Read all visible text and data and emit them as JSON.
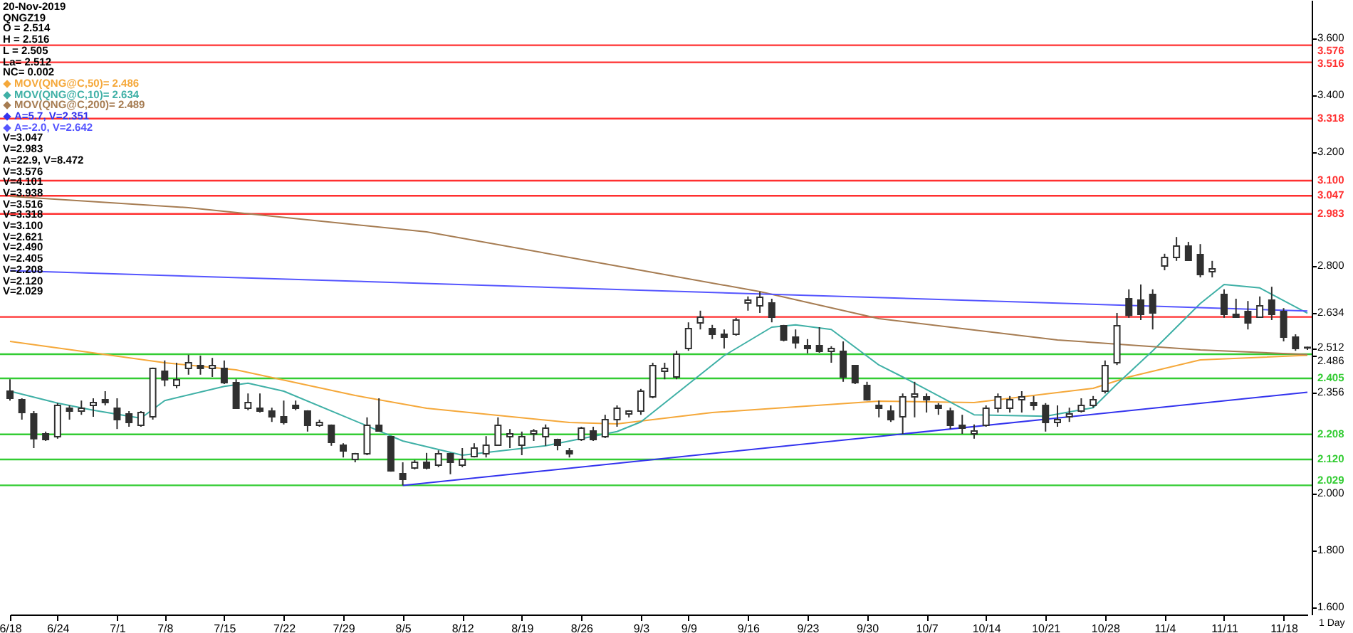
{
  "chart_data": {
    "type": "candlestick",
    "title": "20-Nov-2019",
    "subtitle": "QNGZ19",
    "xlabel": "1 Day",
    "annotations": [
      "O = 2.514",
      "H = 2.516",
      "L = 2.505",
      "La= 2.512",
      "NC= 0.002",
      "V=3.047",
      "V=2.983",
      "A=22.9, V=8.472",
      "V=3.576",
      "V=4.101",
      "V=3.938",
      "V=3.516",
      "V=3.318",
      "V=3.100",
      "V=2.621",
      "V=2.490",
      "V=2.405",
      "V=2.208",
      "V=2.120",
      "V=2.029"
    ],
    "categories": [
      "6/18",
      null,
      null,
      null,
      "6/24",
      null,
      null,
      null,
      null,
      "7/1",
      null,
      null,
      null,
      "7/8",
      null,
      null,
      null,
      null,
      "7/15",
      null,
      null,
      null,
      null,
      "7/22",
      null,
      null,
      null,
      null,
      "7/29",
      null,
      null,
      null,
      null,
      "8/5",
      null,
      null,
      null,
      null,
      "8/12",
      null,
      null,
      null,
      null,
      "8/19",
      null,
      null,
      null,
      null,
      "8/26",
      null,
      null,
      null,
      null,
      "9/3",
      null,
      null,
      null,
      "9/9",
      null,
      null,
      null,
      null,
      "9/16",
      null,
      null,
      null,
      null,
      "9/23",
      null,
      null,
      null,
      null,
      "9/30",
      null,
      null,
      null,
      null,
      "10/7",
      null,
      null,
      null,
      null,
      "10/14",
      null,
      null,
      null,
      null,
      "10/21",
      null,
      null,
      null,
      null,
      "10/28",
      null,
      null,
      null,
      null,
      "11/4",
      null,
      null,
      null,
      null,
      "11/11",
      null,
      null,
      null,
      null,
      "11/18",
      null,
      null
    ],
    "color": "#303030",
    "ohlc": [
      [
        2.36,
        2.402,
        2.327,
        2.335
      ],
      [
        2.33,
        2.335,
        2.26,
        2.285
      ],
      [
        2.28,
        2.29,
        2.16,
        2.193
      ],
      [
        2.21,
        2.218,
        2.185,
        2.19
      ],
      [
        2.2,
        2.318,
        2.193,
        2.31
      ],
      [
        2.3,
        2.31,
        2.26,
        2.29
      ],
      [
        2.29,
        2.327,
        2.277,
        2.3
      ],
      [
        2.31,
        2.335,
        2.27,
        2.32
      ],
      [
        2.33,
        2.36,
        2.31,
        2.32
      ],
      [
        2.3,
        2.335,
        2.227,
        2.26
      ],
      [
        2.28,
        2.29,
        2.235,
        2.25
      ],
      [
        2.24,
        2.29,
        2.235,
        2.285
      ],
      [
        2.27,
        2.443,
        2.26,
        2.44
      ],
      [
        2.43,
        2.468,
        2.377,
        2.4
      ],
      [
        2.38,
        2.46,
        2.37,
        2.4
      ],
      [
        2.44,
        2.488,
        2.418,
        2.46
      ],
      [
        2.45,
        2.485,
        2.418,
        2.44
      ],
      [
        2.44,
        2.477,
        2.41,
        2.45
      ],
      [
        2.44,
        2.468,
        2.385,
        2.39
      ],
      [
        2.39,
        2.402,
        2.298,
        2.3
      ],
      [
        2.3,
        2.352,
        2.293,
        2.32
      ],
      [
        2.3,
        2.352,
        2.285,
        2.29
      ],
      [
        2.29,
        2.302,
        2.252,
        2.27
      ],
      [
        2.27,
        2.327,
        2.243,
        2.25
      ],
      [
        2.31,
        2.327,
        2.293,
        2.3
      ],
      [
        2.29,
        2.293,
        2.218,
        2.24
      ],
      [
        2.24,
        2.26,
        2.235,
        2.25
      ],
      [
        2.24,
        2.243,
        2.168,
        2.18
      ],
      [
        2.17,
        2.177,
        2.127,
        2.15
      ],
      [
        2.12,
        2.143,
        2.11,
        2.14
      ],
      [
        2.14,
        2.268,
        2.135,
        2.24
      ],
      [
        2.24,
        2.335,
        2.218,
        2.22
      ],
      [
        2.2,
        2.202,
        2.077,
        2.08
      ],
      [
        2.07,
        2.11,
        2.029,
        2.05
      ],
      [
        2.09,
        2.118,
        2.085,
        2.11
      ],
      [
        2.11,
        2.143,
        2.085,
        2.09
      ],
      [
        2.1,
        2.152,
        2.093,
        2.14
      ],
      [
        2.14,
        2.143,
        2.068,
        2.11
      ],
      [
        2.1,
        2.16,
        2.093,
        2.12
      ],
      [
        2.13,
        2.177,
        2.127,
        2.16
      ],
      [
        2.14,
        2.202,
        2.127,
        2.17
      ],
      [
        2.17,
        2.268,
        2.168,
        2.24
      ],
      [
        2.2,
        2.227,
        2.16,
        2.21
      ],
      [
        2.17,
        2.218,
        2.135,
        2.2
      ],
      [
        2.21,
        2.227,
        2.185,
        2.22
      ],
      [
        2.2,
        2.243,
        2.168,
        2.23
      ],
      [
        2.19,
        2.193,
        2.152,
        2.17
      ],
      [
        2.15,
        2.16,
        2.127,
        2.14
      ],
      [
        2.19,
        2.235,
        2.185,
        2.23
      ],
      [
        2.22,
        2.235,
        2.185,
        2.19
      ],
      [
        2.2,
        2.277,
        2.195,
        2.26
      ],
      [
        2.26,
        2.31,
        2.235,
        2.3
      ],
      [
        2.28,
        2.293,
        2.268,
        2.29
      ],
      [
        2.29,
        2.368,
        2.277,
        2.36
      ],
      [
        2.34,
        2.46,
        2.335,
        2.45
      ],
      [
        2.43,
        2.46,
        2.402,
        2.44
      ],
      [
        2.41,
        2.502,
        2.402,
        2.49
      ],
      [
        2.51,
        2.602,
        2.502,
        2.58
      ],
      [
        2.6,
        2.643,
        2.577,
        2.62
      ],
      [
        2.58,
        2.593,
        2.543,
        2.56
      ],
      [
        2.56,
        2.577,
        2.51,
        2.55
      ],
      [
        2.56,
        2.618,
        2.555,
        2.61
      ],
      [
        2.67,
        2.693,
        2.643,
        2.68
      ],
      [
        2.66,
        2.71,
        2.635,
        2.69
      ],
      [
        2.67,
        2.685,
        2.602,
        2.62
      ],
      [
        2.59,
        2.593,
        2.535,
        2.54
      ],
      [
        2.55,
        2.577,
        2.51,
        2.53
      ],
      [
        2.52,
        2.543,
        2.493,
        2.51
      ],
      [
        2.52,
        2.585,
        2.495,
        2.5
      ],
      [
        2.5,
        2.518,
        2.46,
        2.51
      ],
      [
        2.5,
        2.535,
        2.393,
        2.41
      ],
      [
        2.45,
        2.452,
        2.385,
        2.39
      ],
      [
        2.38,
        2.393,
        2.327,
        2.33
      ],
      [
        2.31,
        2.327,
        2.268,
        2.3
      ],
      [
        2.29,
        2.31,
        2.252,
        2.26
      ],
      [
        2.27,
        2.352,
        2.21,
        2.34
      ],
      [
        2.34,
        2.393,
        2.268,
        2.35
      ],
      [
        2.34,
        2.352,
        2.285,
        2.33
      ],
      [
        2.31,
        2.318,
        2.277,
        2.3
      ],
      [
        2.29,
        2.302,
        2.227,
        2.24
      ],
      [
        2.24,
        2.277,
        2.21,
        2.23
      ],
      [
        2.21,
        2.243,
        2.193,
        2.22
      ],
      [
        2.24,
        2.31,
        2.235,
        2.3
      ],
      [
        2.3,
        2.352,
        2.285,
        2.34
      ],
      [
        2.3,
        2.343,
        2.285,
        2.33
      ],
      [
        2.33,
        2.36,
        2.285,
        2.34
      ],
      [
        2.32,
        2.343,
        2.293,
        2.31
      ],
      [
        2.31,
        2.318,
        2.218,
        2.25
      ],
      [
        2.25,
        2.31,
        2.235,
        2.26
      ],
      [
        2.27,
        2.302,
        2.252,
        2.28
      ],
      [
        2.29,
        2.335,
        2.285,
        2.31
      ],
      [
        2.31,
        2.343,
        2.302,
        2.33
      ],
      [
        2.36,
        2.468,
        2.352,
        2.45
      ],
      [
        2.46,
        2.635,
        2.452,
        2.59
      ],
      [
        2.685,
        2.718,
        2.618,
        2.627
      ],
      [
        2.68,
        2.735,
        2.61,
        2.63
      ],
      [
        2.7,
        2.718,
        2.577,
        2.635
      ],
      [
        2.8,
        2.843,
        2.785,
        2.83
      ],
      [
        2.83,
        2.902,
        2.818,
        2.87
      ],
      [
        2.87,
        2.885,
        2.818,
        2.82
      ],
      [
        2.84,
        2.877,
        2.76,
        2.77
      ],
      [
        2.78,
        2.818,
        2.76,
        2.79
      ],
      [
        2.7,
        2.718,
        2.618,
        2.63
      ],
      [
        2.63,
        2.685,
        2.618,
        2.62
      ],
      [
        2.64,
        2.677,
        2.577,
        2.6
      ],
      [
        2.62,
        2.693,
        2.618,
        2.66
      ],
      [
        2.68,
        2.727,
        2.61,
        2.63
      ],
      [
        2.64,
        2.652,
        2.535,
        2.55
      ],
      [
        2.55,
        2.56,
        2.502,
        2.51
      ],
      [
        2.514,
        2.516,
        2.505,
        2.512
      ]
    ],
    "series": [
      {
        "type": "line",
        "name": "MOV(QNG@C,50)= 2.486",
        "color": "#f5a83a",
        "values": [
          2.535,
          null,
          null,
          null,
          null,
          null,
          null,
          null,
          null,
          null,
          null,
          null,
          null,
          2.46,
          null,
          null,
          null,
          null,
          null,
          2.435,
          null,
          null,
          null,
          null,
          null,
          null,
          null,
          null,
          null,
          2.345,
          null,
          null,
          null,
          null,
          null,
          2.3,
          null,
          null,
          null,
          null,
          null,
          null,
          null,
          null,
          null,
          null,
          null,
          2.25,
          null,
          null,
          null,
          2.245,
          null,
          null,
          null,
          null,
          null,
          null,
          null,
          2.285,
          null,
          null,
          null,
          null,
          null,
          null,
          null,
          null,
          null,
          null,
          null,
          null,
          null,
          2.325,
          null,
          null,
          null,
          null,
          null,
          null,
          null,
          2.32,
          null,
          null,
          null,
          null,
          null,
          null,
          null,
          null,
          null,
          2.37,
          null,
          null,
          2.41,
          null,
          null,
          null,
          null,
          null,
          2.47,
          null,
          null,
          null,
          null,
          null,
          null,
          null,
          null,
          2.486
        ]
      },
      {
        "type": "line",
        "name": "MOV(QNG@C,10)= 2.634",
        "color": "#3fb0a6",
        "values": [
          2.36,
          null,
          null,
          null,
          2.318,
          null,
          null,
          2.293,
          null,
          null,
          null,
          2.265,
          null,
          2.327,
          null,
          null,
          null,
          null,
          2.377,
          null,
          2.388,
          null,
          null,
          2.36,
          null,
          null,
          null,
          null,
          null,
          null,
          2.238,
          null,
          null,
          2.185,
          null,
          null,
          null,
          null,
          2.135,
          null,
          null,
          null,
          null,
          null,
          null,
          2.168,
          null,
          null,
          null,
          null,
          null,
          2.218,
          null,
          2.252,
          null,
          null,
          null,
          2.385,
          null,
          null,
          2.485,
          null,
          null,
          null,
          2.585,
          null,
          2.593,
          null,
          null,
          2.577,
          null,
          null,
          null,
          2.452,
          null,
          2.41,
          null,
          null,
          null,
          null,
          null,
          2.277,
          null,
          null,
          null,
          null,
          null,
          2.272,
          null,
          null,
          null,
          2.302,
          null,
          2.385,
          null,
          null,
          2.502,
          null,
          null,
          null,
          2.668,
          null,
          2.735,
          null,
          null,
          2.723,
          null,
          null,
          null,
          2.634
        ]
      },
      {
        "type": "line",
        "name": "MOV(QNG@C,200)= 2.489",
        "color": "#a67c52",
        "values": [
          3.045,
          null,
          null,
          null,
          null,
          null,
          null,
          null,
          null,
          null,
          null,
          null,
          null,
          null,
          null,
          3.005,
          null,
          null,
          null,
          null,
          null,
          null,
          null,
          null,
          null,
          null,
          null,
          null,
          null,
          null,
          null,
          null,
          null,
          null,
          null,
          2.92,
          null,
          null,
          null,
          null,
          null,
          null,
          null,
          null,
          null,
          null,
          null,
          null,
          null,
          null,
          null,
          null,
          null,
          2.785,
          null,
          null,
          null,
          null,
          null,
          null,
          null,
          null,
          null,
          2.71,
          null,
          null,
          null,
          null,
          null,
          null,
          null,
          null,
          null,
          2.615,
          null,
          null,
          null,
          null,
          null,
          null,
          null,
          null,
          null,
          null,
          null,
          null,
          null,
          null,
          2.54,
          null,
          null,
          null,
          null,
          null,
          null,
          null,
          null,
          null,
          null,
          null,
          2.505,
          null,
          null,
          null,
          null,
          null,
          null,
          null,
          null,
          2.489
        ]
      },
      {
        "type": "line",
        "name": "A=5.7, V=2.351",
        "color": "#3333ee",
        "values": [
          null,
          null,
          null,
          null,
          null,
          null,
          null,
          null,
          null,
          null,
          null,
          null,
          null,
          null,
          null,
          null,
          null,
          null,
          null,
          null,
          null,
          null,
          null,
          null,
          null,
          null,
          null,
          null,
          null,
          null,
          null,
          null,
          null,
          2.029,
          null,
          null,
          null,
          null,
          null,
          null,
          null,
          null,
          null,
          null,
          null,
          null,
          null,
          null,
          null,
          null,
          null,
          null,
          null,
          null,
          null,
          null,
          null,
          null,
          null,
          null,
          null,
          null,
          null,
          null,
          null,
          null,
          null,
          null,
          null,
          null,
          null,
          null,
          null,
          null,
          null,
          null,
          null,
          null,
          null,
          null,
          null,
          null,
          null,
          null,
          null,
          null,
          null,
          null,
          null,
          null,
          null,
          null,
          null,
          null,
          null,
          null,
          null,
          null,
          null,
          null,
          null,
          null,
          null,
          null,
          null,
          null,
          null,
          null,
          null,
          2.356
        ]
      },
      {
        "type": "line",
        "name": "A=-2.0, V=2.642",
        "color": "#5555ff",
        "values": [
          2.784,
          null,
          null,
          null,
          null,
          null,
          null,
          null,
          null,
          null,
          null,
          null,
          null,
          null,
          null,
          null,
          null,
          null,
          null,
          null,
          null,
          null,
          null,
          null,
          null,
          null,
          null,
          null,
          null,
          null,
          null,
          null,
          null,
          null,
          null,
          null,
          null,
          null,
          null,
          null,
          null,
          null,
          null,
          null,
          null,
          null,
          null,
          null,
          null,
          null,
          null,
          null,
          null,
          null,
          null,
          null,
          null,
          null,
          null,
          null,
          null,
          null,
          null,
          null,
          null,
          null,
          null,
          null,
          null,
          null,
          null,
          null,
          null,
          null,
          null,
          null,
          null,
          null,
          null,
          null,
          null,
          null,
          null,
          null,
          null,
          null,
          null,
          null,
          null,
          null,
          null,
          null,
          null,
          null,
          null,
          null,
          null,
          null,
          null,
          null,
          null,
          null,
          null,
          null,
          null,
          null,
          null,
          null,
          null,
          2.642
        ]
      }
    ],
    "ref_lines": [
      {
        "axis": "y",
        "value": 3.576,
        "label": "3.576",
        "color": "#ff3030"
      },
      {
        "axis": "y",
        "value": 3.516,
        "label": "3.516",
        "color": "#ff3030"
      },
      {
        "axis": "y",
        "value": 3.318,
        "label": "3.318",
        "color": "#ff3030"
      },
      {
        "axis": "y",
        "value": 3.1,
        "label": "3.100",
        "color": "#ff3030"
      },
      {
        "axis": "y",
        "value": 3.047,
        "label": "3.047",
        "color": "#ff3030"
      },
      {
        "axis": "y",
        "value": 2.983,
        "label": "2.983",
        "color": "#ff3030"
      },
      {
        "axis": "y",
        "value": 2.621,
        "label": null,
        "color": "#ff3030"
      },
      {
        "axis": "y",
        "value": 2.49,
        "label": null,
        "color": "#33cc33"
      },
      {
        "axis": "y",
        "value": 2.405,
        "label": "2.405",
        "color": "#33cc33"
      },
      {
        "axis": "y",
        "value": 2.208,
        "label": "2.208",
        "color": "#33cc33"
      },
      {
        "axis": "y",
        "value": 2.12,
        "label": "2.120",
        "color": "#33cc33"
      },
      {
        "axis": "y",
        "value": 2.029,
        "label": "2.029",
        "color": "#33cc33"
      }
    ],
    "ylim": [
      1.575,
      3.735
    ],
    "yticks": [
      {
        "value": 3.6,
        "label": "3.600"
      },
      {
        "value": 3.4,
        "label": "3.400"
      },
      {
        "value": 3.2,
        "label": "3.200"
      },
      {
        "value": 2.8,
        "label": "2.800"
      },
      {
        "value": 2.634,
        "label": "2.634"
      },
      {
        "value": 2.512,
        "label": "2.512"
      },
      {
        "value": 2.486,
        "label": "2.486"
      },
      {
        "value": 2.356,
        "label": "2.356"
      },
      {
        "value": 2.0,
        "label": "2.000"
      },
      {
        "value": 1.8,
        "label": "1.800"
      },
      {
        "value": 1.6,
        "label": "1.600"
      }
    ],
    "legend": "top left"
  }
}
